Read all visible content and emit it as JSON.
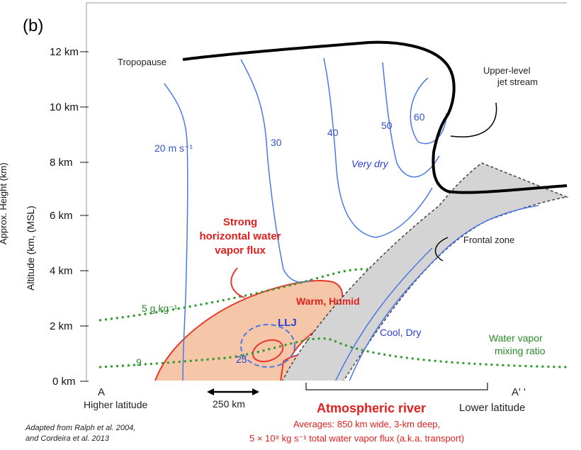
{
  "panel_label": "(b)",
  "y_axis": {
    "label": "Altitude (km, (MSL)",
    "outer_label": "Approx. Height (km)",
    "ticks": [
      "12 km",
      "10 km",
      "8 km",
      "6 km",
      "4 km",
      "2 km",
      "0 km"
    ]
  },
  "isotachs": [
    "20 m s⁻¹",
    "30",
    "40",
    "50",
    "60"
  ],
  "labels": {
    "tropopause": "Tropopause",
    "jet_stream_line1": "Upper-level",
    "jet_stream_line2": "jet stream",
    "very_dry": "Very dry",
    "frontal_zone": "Frontal zone",
    "flux_line1": "Strong",
    "flux_line2": "horizontal water",
    "flux_line3": "vapor flux",
    "warm_humid": "Warm, Humid",
    "llj": "LLJ",
    "llj_speed": "25",
    "cool_dry": "Cool, Dry",
    "mixing_5": "5 g kg⁻¹",
    "mixing_9": "9",
    "wv_line1": "Water vapor",
    "wv_line2": "mixing ratio"
  },
  "bottom": {
    "point_a": "A",
    "point_a_prime": "A' '",
    "higher_latitude": "Higher latitude",
    "lower_latitude": "Lower latitude",
    "scale": "250 km",
    "ar_title": "Atmospheric river",
    "averages": "Averages: 850 km wide,  3-km deep,",
    "flux": "5 × 10⁸ kg s⁻¹ total water vapor flux (a.k.a. transport)",
    "credit_line1": "Adapted  from Ralph et al. 2004,",
    "credit_line2": "and  Cordeira et al. 2013"
  }
}
